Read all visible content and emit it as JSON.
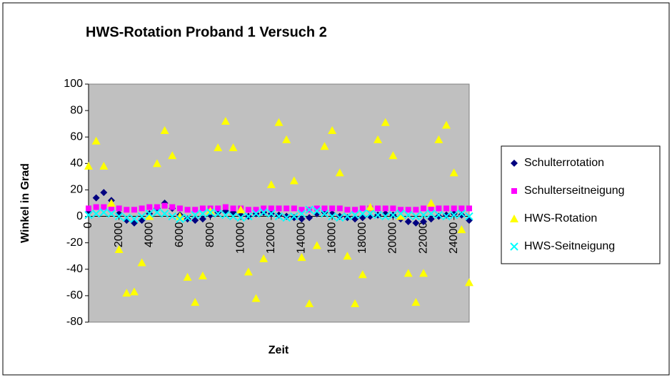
{
  "chart_data": {
    "type": "scatter",
    "title": "HWS-Rotation Proband 1 Versuch 2",
    "x_label": "Zeit",
    "y_label": "Winkel in Grad",
    "xlim": [
      0,
      25000
    ],
    "xticks": [
      0,
      2000,
      4000,
      6000,
      8000,
      10000,
      12000,
      14000,
      16000,
      18000,
      20000,
      22000,
      24000
    ],
    "ylim": [
      -80,
      100
    ],
    "yticks": [
      -80,
      -60,
      -40,
      -20,
      0,
      20,
      40,
      60,
      80,
      100
    ],
    "x": [
      0,
      500,
      1000,
      1500,
      2000,
      2500,
      3000,
      3500,
      4000,
      4500,
      5000,
      5500,
      6000,
      6500,
      7000,
      7500,
      8000,
      8500,
      9000,
      9500,
      10000,
      10500,
      11000,
      11500,
      12000,
      12500,
      13000,
      13500,
      14000,
      14500,
      15000,
      15500,
      16000,
      16500,
      17000,
      17500,
      18000,
      18500,
      19000,
      19500,
      20000,
      20500,
      21000,
      21500,
      22000,
      22500,
      23000,
      23500,
      24000,
      24500,
      25000
    ],
    "series": [
      {
        "name": "Schulterrotation",
        "color": "#000080",
        "marker": "diamond",
        "values": [
          3,
          14,
          18,
          12,
          2,
          -3,
          -5,
          -3,
          2,
          6,
          10,
          6,
          1,
          -2,
          -3,
          -2,
          1,
          3,
          4,
          3,
          1,
          0,
          2,
          3,
          2,
          1,
          0,
          -1,
          -2,
          -1,
          2,
          3,
          2,
          0,
          -1,
          -2,
          -1,
          0,
          1,
          2,
          1,
          -2,
          -4,
          -5,
          -4,
          -2,
          0,
          1,
          2,
          1,
          -3
        ]
      },
      {
        "name": "Schulterseitneigung",
        "color": "#ff00ff",
        "marker": "square",
        "values": [
          6,
          7,
          7,
          6,
          6,
          5,
          5,
          6,
          7,
          7,
          8,
          7,
          6,
          5,
          5,
          6,
          6,
          6,
          7,
          6,
          6,
          5,
          5,
          6,
          6,
          6,
          6,
          6,
          5,
          5,
          6,
          6,
          6,
          6,
          5,
          5,
          6,
          6,
          6,
          6,
          6,
          5,
          5,
          5,
          6,
          6,
          6,
          6,
          6,
          6,
          6
        ]
      },
      {
        "name": "HWS-Rotation",
        "color": "#ffff00",
        "marker": "triangle",
        "values": [
          38,
          57,
          38,
          10,
          -25,
          -58,
          -57,
          -35,
          0,
          40,
          65,
          46,
          0,
          -46,
          -65,
          -45,
          4,
          52,
          72,
          52,
          5,
          -42,
          -62,
          -32,
          24,
          71,
          58,
          27,
          -31,
          -66,
          -22,
          53,
          65,
          33,
          -30,
          -66,
          -44,
          7,
          58,
          71,
          46,
          0,
          -43,
          -65,
          -43,
          10,
          58,
          69,
          33,
          -10,
          -50
        ]
      },
      {
        "name": "HWS-Seitneigung",
        "color": "#00ffff",
        "marker": "x",
        "values": [
          1,
          2,
          3,
          2,
          0,
          -1,
          -2,
          0,
          2,
          3,
          2,
          0,
          -2,
          -1,
          1,
          2,
          3,
          2,
          1,
          0,
          -1,
          0,
          2,
          3,
          2,
          0,
          -1,
          0,
          2,
          5,
          4,
          2,
          0,
          -1,
          0,
          1,
          2,
          2,
          1,
          0,
          1,
          2,
          1,
          0,
          1,
          2,
          1,
          0,
          1,
          2,
          0
        ]
      }
    ]
  }
}
